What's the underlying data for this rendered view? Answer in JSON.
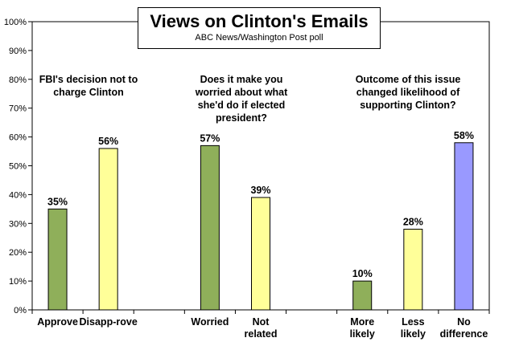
{
  "chart_data": {
    "type": "bar",
    "title": "Views on Clinton's Emails",
    "subtitle": "ABC News/Washington  Post poll",
    "ylim": [
      0,
      100
    ],
    "yticks": [
      "0%",
      "10%",
      "20%",
      "30%",
      "40%",
      "50%",
      "60%",
      "70%",
      "80%",
      "90%",
      "100%"
    ],
    "grid": false,
    "groups": [
      {
        "label": "FBI's decision not to charge Clinton"
      },
      {
        "label": "Does it make you worried about what she'd do if elected president?"
      },
      {
        "label": "Outcome of this issue changed likelihood of supporting Clinton?"
      }
    ],
    "bars": [
      {
        "category": "Approve",
        "value": 35,
        "data_label": "35%",
        "color": "#8faf5a",
        "group": 0,
        "slot": 0
      },
      {
        "category": "Disapp-rove",
        "value": 56,
        "data_label": "56%",
        "color": "#ffff99",
        "group": 0,
        "slot": 1
      },
      {
        "category": "Worried",
        "value": 57,
        "data_label": "57%",
        "color": "#8faf5a",
        "group": 1,
        "slot": 3
      },
      {
        "category": "Not related",
        "value": 39,
        "data_label": "39%",
        "color": "#ffff99",
        "group": 1,
        "slot": 4
      },
      {
        "category": "More likely",
        "value": 10,
        "data_label": "10%",
        "color": "#8faf5a",
        "group": 2,
        "slot": 6
      },
      {
        "category": "Less likely",
        "value": 28,
        "data_label": "28%",
        "color": "#ffff99",
        "group": 2,
        "slot": 7
      },
      {
        "category": "No difference",
        "value": 58,
        "data_label": "58%",
        "color": "#9999ff",
        "group": 2,
        "slot": 8
      }
    ]
  }
}
